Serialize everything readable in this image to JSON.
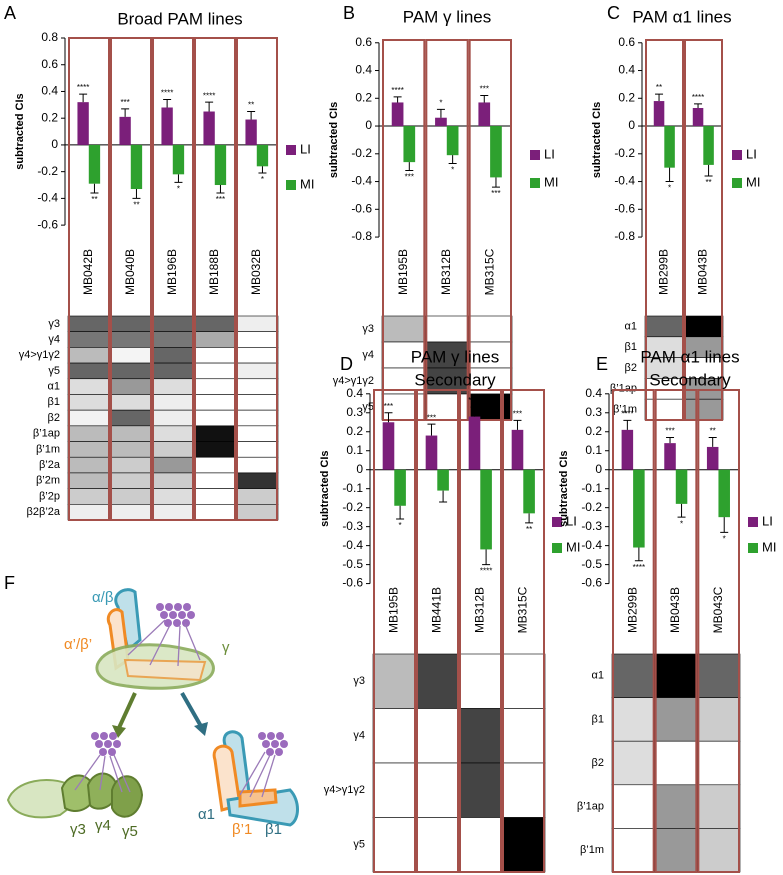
{
  "chart_data": [
    {
      "type": "bar",
      "panel": "A",
      "title": "Broad PAM lines",
      "y_label": "subtracted CIs",
      "categories": [
        "MB042B",
        "MB040B",
        "MB196B",
        "MB188B",
        "MB032B"
      ],
      "series": [
        {
          "name": "LI",
          "color": "#7b1f7a",
          "values": [
            0.32,
            0.21,
            0.28,
            0.25,
            0.19
          ],
          "errors": [
            0.06,
            0.06,
            0.06,
            0.07,
            0.06
          ],
          "stars": [
            "****",
            "***",
            "****",
            "****",
            "**"
          ]
        },
        {
          "name": "MI",
          "color": "#2ea12e",
          "values": [
            -0.29,
            -0.33,
            -0.22,
            -0.3,
            -0.16
          ],
          "errors": [
            0.07,
            0.07,
            0.06,
            0.06,
            0.05
          ],
          "stars": [
            "**",
            "**",
            "*",
            "***",
            "*"
          ]
        }
      ],
      "ylim": [
        -1.25,
        0.8
      ],
      "yticks": [
        0.8,
        0.6,
        0.4,
        0.2,
        0,
        -0.2,
        -0.4,
        -0.6
      ],
      "heatmap": {
        "rows": [
          "γ3",
          "γ4",
          "γ4>γ1γ2",
          "γ5",
          "α1",
          "β1",
          "β2",
          "β’1ap",
          "β’1m",
          "β’2a",
          "β’2m",
          "β’2p",
          "β2β’2a"
        ],
        "colors": [
          [
            "#666666",
            "#777777",
            "#bbbbbb",
            "#666666",
            "#dddddd",
            "#dddddd",
            "#f2f2f2",
            "#bbbbbb",
            "#bbbbbb",
            "#bbbbbb",
            "#bbbbbb",
            "#cccccc",
            "#eeeeee"
          ],
          [
            "#666666",
            "#777777",
            "#f4f4f4",
            "#666666",
            "#999999",
            "#dddddd",
            "#666666",
            "#bbbbbb",
            "#bbbbbb",
            "#cccccc",
            "#cccccc",
            "#cccccc",
            "#eeeeee"
          ],
          [
            "#666666",
            "#777777",
            "#666666",
            "#666666",
            "#dddddd",
            "#eeeeee",
            "#eeeeee",
            "#dddddd",
            "#cccccc",
            "#999999",
            "#cccccc",
            "#dddddd",
            "#eeeeee"
          ],
          [
            "#666666",
            "#aaaaaa",
            "#ffffff",
            "#ffffff",
            "#ffffff",
            "#ffffff",
            "#ffffff",
            "#111111",
            "#111111",
            "#ffffff",
            "#ffffff",
            "#ffffff",
            "#ffffff"
          ],
          [
            "#eeeeee",
            "#ffffff",
            "#ffffff",
            "#eeeeee",
            "#ffffff",
            "#ffffff",
            "#ffffff",
            "#ffffff",
            "#ffffff",
            "#ffffff",
            "#333333",
            "#cccccc",
            "#cccccc"
          ]
        ]
      }
    },
    {
      "type": "bar",
      "panel": "B",
      "title": "PAM γ lines",
      "y_label": "subtracted CIs",
      "categories": [
        "MB195B",
        "MB312B",
        "MB315C"
      ],
      "series": [
        {
          "name": "LI",
          "color": "#7b1f7a",
          "values": [
            0.17,
            0.06,
            0.17
          ],
          "errors": [
            0.04,
            0.06,
            0.05
          ],
          "stars": [
            "****",
            "*",
            "***"
          ]
        },
        {
          "name": "MI",
          "color": "#2ea12e",
          "values": [
            -0.26,
            -0.21,
            -0.37
          ],
          "errors": [
            0.06,
            0.06,
            0.07
          ],
          "stars": [
            "***",
            "*",
            "***"
          ]
        }
      ],
      "ylim": [
        -1.34,
        0.62
      ],
      "yticks": [
        0.6,
        0.4,
        0.2,
        0,
        -0.2,
        -0.4,
        -0.6,
        -0.8
      ],
      "heatmap": {
        "rows": [
          "γ3",
          "γ4",
          "γ4>γ1γ2",
          "γ5"
        ],
        "colors": [
          [
            "#bbbbbb",
            "#ffffff",
            "#ffffff",
            "#ffffff"
          ],
          [
            "#ffffff",
            "#444444",
            "#444444",
            "#ffffff"
          ],
          [
            "#ffffff",
            "#ffffff",
            "#ffffff",
            "#000000"
          ]
        ]
      }
    },
    {
      "type": "bar",
      "panel": "C",
      "title": "PAM α1 lines",
      "y_label": "subtracted CIs",
      "categories": [
        "MB299B",
        "MB043B"
      ],
      "series": [
        {
          "name": "LI",
          "color": "#7b1f7a",
          "values": [
            0.18,
            0.13
          ],
          "errors": [
            0.05,
            0.03
          ],
          "stars": [
            "**",
            "****"
          ]
        },
        {
          "name": "MI",
          "color": "#2ea12e",
          "values": [
            -0.3,
            -0.28
          ],
          "errors": [
            0.1,
            0.08
          ],
          "stars": [
            "*",
            "**"
          ]
        }
      ],
      "ylim": [
        -1.34,
        0.62
      ],
      "yticks": [
        0.6,
        0.4,
        0.2,
        0,
        -0.2,
        -0.4,
        -0.6,
        -0.8
      ],
      "heatmap": {
        "rows": [
          "α1",
          "β1",
          "β2",
          "β’1ap",
          "β’1m"
        ],
        "colors": [
          [
            "#666666",
            "#dddddd",
            "#dddddd",
            "#ffffff",
            "#ffffff"
          ],
          [
            "#000000",
            "#999999",
            "#ffffff",
            "#999999",
            "#999999"
          ]
        ]
      }
    },
    {
      "type": "bar",
      "panel": "D",
      "title": "PAM γ lines",
      "subtitle": "Secondary",
      "y_label": "subtracted CIs",
      "categories": [
        "MB195B",
        "MB441B",
        "MB312B",
        "MB315C"
      ],
      "series": [
        {
          "name": "LI",
          "color": "#7b1f7a",
          "values": [
            0.25,
            0.18,
            0.28,
            0.21
          ],
          "errors": [
            0.05,
            0.06,
            0.05,
            0.05
          ],
          "stars": [
            "***",
            "***",
            "****",
            "***"
          ]
        },
        {
          "name": "MI",
          "color": "#2ea12e",
          "values": [
            -0.19,
            -0.11,
            -0.42,
            -0.23
          ],
          "errors": [
            0.07,
            0.06,
            0.08,
            0.05
          ],
          "stars": [
            "*",
            null,
            "****",
            "**"
          ]
        }
      ],
      "ylim": [
        -0.95,
        0.42
      ],
      "yticks": [
        0.4,
        0.3,
        0.2,
        0.1,
        0,
        -0.1,
        -0.2,
        -0.3,
        -0.4,
        -0.5,
        -0.6
      ],
      "heatmap": {
        "rows": [
          "γ3",
          "γ4",
          "γ4>γ1γ2",
          "γ5"
        ],
        "colors": [
          [
            "#bbbbbb",
            "#ffffff",
            "#ffffff",
            "#ffffff"
          ],
          [
            "#444444",
            "#ffffff",
            "#ffffff",
            "#ffffff"
          ],
          [
            "#ffffff",
            "#444444",
            "#444444",
            "#ffffff"
          ],
          [
            "#ffffff",
            "#ffffff",
            "#ffffff",
            "#000000"
          ]
        ]
      }
    },
    {
      "type": "bar",
      "panel": "E",
      "title": "PAM α1 lines",
      "subtitle": "Secondary",
      "y_label": "subtracted CIs",
      "categories": [
        "MB299B",
        "MB043B",
        "MB043C"
      ],
      "series": [
        {
          "name": "LI",
          "color": "#7b1f7a",
          "values": [
            0.21,
            0.14,
            0.12
          ],
          "errors": [
            0.05,
            0.03,
            0.05
          ],
          "stars": [
            "****",
            "***",
            "**"
          ]
        },
        {
          "name": "MI",
          "color": "#2ea12e",
          "values": [
            -0.41,
            -0.18,
            -0.25
          ],
          "errors": [
            0.07,
            0.07,
            0.08
          ],
          "stars": [
            "****",
            "*",
            "*"
          ]
        }
      ],
      "ylim": [
        -0.95,
        0.42
      ],
      "yticks": [
        0.4,
        0.3,
        0.2,
        0.1,
        0,
        -0.1,
        -0.2,
        -0.3,
        -0.4,
        -0.5,
        -0.6
      ],
      "heatmap": {
        "rows": [
          "α1",
          "β1",
          "β2",
          "β’1ap",
          "β’1m"
        ],
        "colors": [
          [
            "#666666",
            "#dddddd",
            "#dddddd",
            "#ffffff",
            "#ffffff"
          ],
          [
            "#000000",
            "#999999",
            "#ffffff",
            "#999999",
            "#999999"
          ],
          [
            "#666666",
            "#cccccc",
            "#ffffff",
            "#cccccc",
            "#cccccc"
          ]
        ]
      }
    }
  ],
  "diagram": {
    "panel": "F",
    "labels": {
      "alpha_beta": "α/β",
      "alpha_beta_prime": "α’/β’",
      "gamma": "γ",
      "gamma3": "γ3",
      "gamma4": "γ4",
      "gamma5": "γ5",
      "alpha1": "α1",
      "beta_prime1": "β’1",
      "beta1": "β1"
    }
  }
}
